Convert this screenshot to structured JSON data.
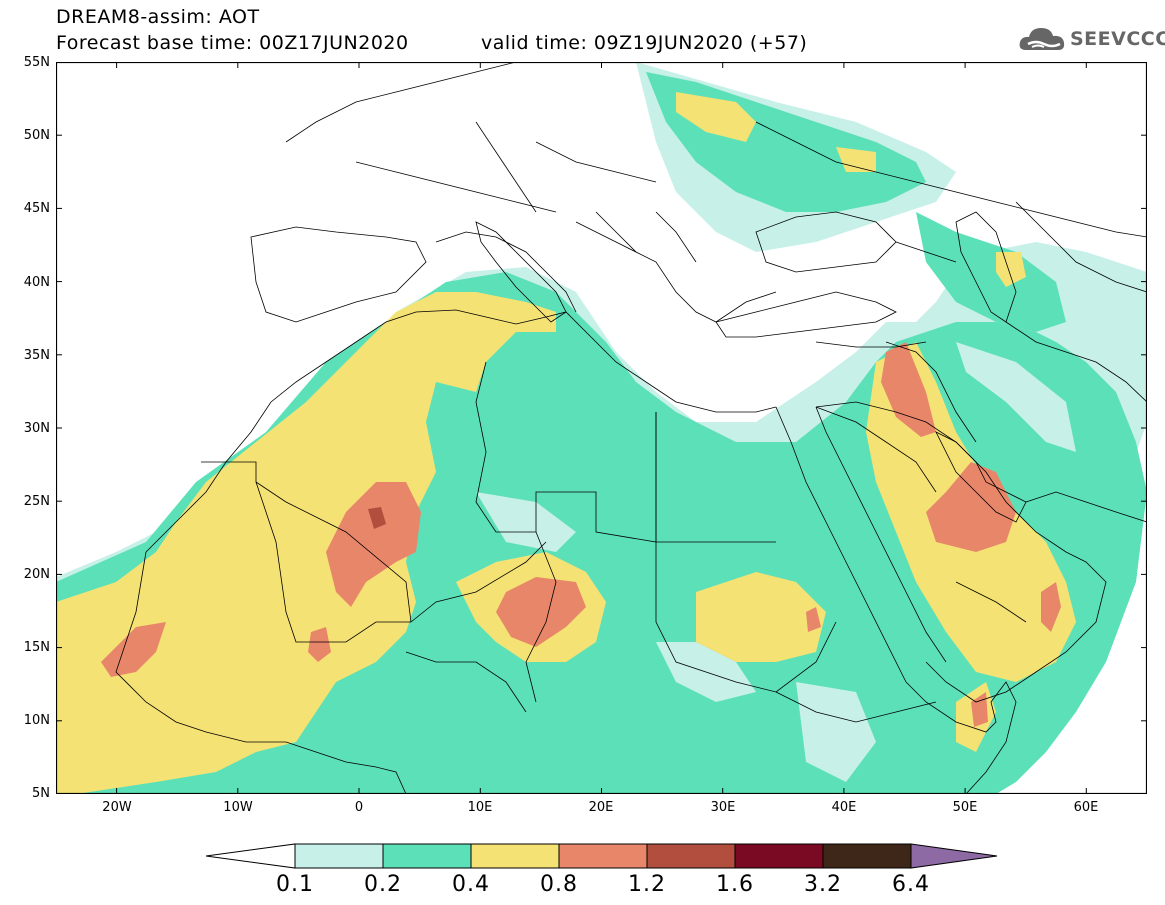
{
  "header": {
    "title_line1": "DREAM8-assim: AOT",
    "title_line2": "Forecast base time: 00Z17JUN2020",
    "valid_time": "valid time: 09Z19JUN2020 (+57)",
    "logo_text": "SEEVCCC"
  },
  "map": {
    "region": "North Africa, Mediterranean, Middle East",
    "lat_labels": [
      "55N",
      "50N",
      "45N",
      "40N",
      "35N",
      "30N",
      "25N",
      "20N",
      "15N",
      "10N",
      "5N"
    ],
    "lon_labels": [
      "20W",
      "10W",
      "0",
      "10E",
      "20E",
      "30E",
      "40E",
      "50E",
      "60E"
    ],
    "extent": {
      "lon": [
        -25,
        65
      ],
      "lat": [
        5,
        55
      ]
    }
  },
  "colorbar": {
    "labels": [
      "0.1",
      "0.2",
      "0.4",
      "0.8",
      "1.2",
      "1.6",
      "3.2",
      "6.4"
    ],
    "colors": [
      "#ffffff",
      "#c6f0e8",
      "#5ce0b8",
      "#f5e274",
      "#e8866a",
      "#b24e3e",
      "#7a0a24",
      "#3e2718",
      "#8d6aa3"
    ]
  },
  "colors": {
    "c01": "#c6f0e8",
    "c02": "#5ce0b8",
    "c04": "#f5e274",
    "c08": "#e8866a",
    "c12": "#b24e3e"
  }
}
